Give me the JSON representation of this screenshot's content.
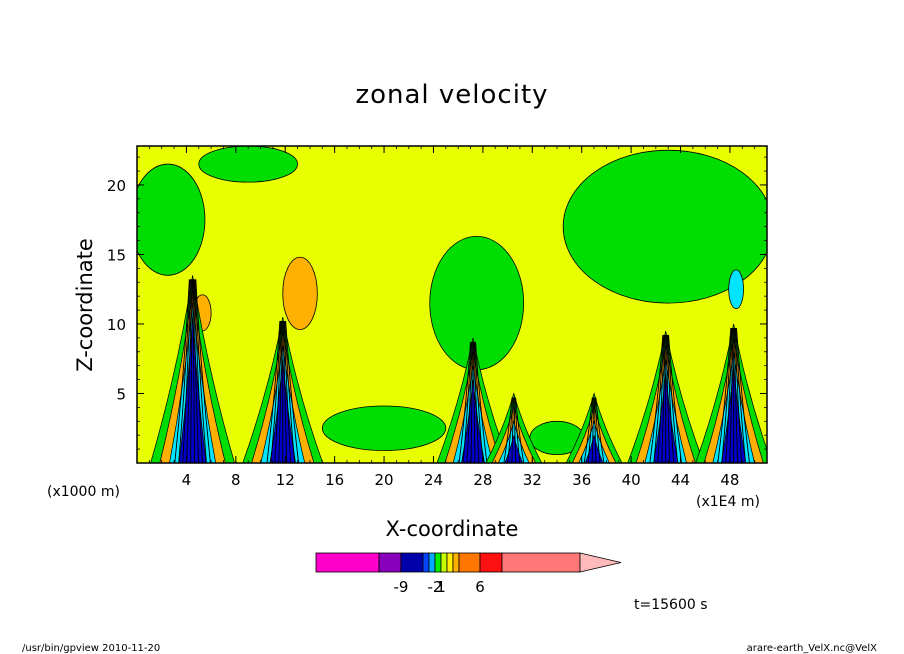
{
  "chart_data": {
    "type": "heatmap",
    "title": "zonal velocity",
    "xlabel": "X-coordinate",
    "ylabel": "Z-coordinate",
    "x_unit_left": "(x1000 m)",
    "x_unit_right": "(x1E4 m)",
    "xlim": [
      0,
      51
    ],
    "ylim": [
      0,
      22.8
    ],
    "x_ticks": [
      4,
      8,
      12,
      16,
      20,
      24,
      28,
      32,
      36,
      40,
      44,
      48
    ],
    "y_ticks": [
      5,
      10,
      15,
      20
    ],
    "background_color": "#e8ff00",
    "features": [
      {
        "x": 4.5,
        "strength": 1.0,
        "top": 13.5
      },
      {
        "x": 11.8,
        "strength": 0.9,
        "top": 10.5
      },
      {
        "x": 27.2,
        "strength": 0.7,
        "top": 9.0
      },
      {
        "x": 30.5,
        "strength": 0.3,
        "top": 5.0
      },
      {
        "x": 37.0,
        "strength": 0.3,
        "top": 5.0
      },
      {
        "x": 42.8,
        "strength": 0.8,
        "top": 9.5
      },
      {
        "x": 48.3,
        "strength": 0.8,
        "top": 10.0
      }
    ],
    "regions": [
      {
        "color": "#00dd00",
        "cx": 27.5,
        "cy": 11.5,
        "rx": 3.8,
        "ry": 4.8
      },
      {
        "color": "#00dd00",
        "cx": 43.0,
        "cy": 17.0,
        "rx": 8.5,
        "ry": 5.5
      },
      {
        "color": "#00dd00",
        "cx": 2.5,
        "cy": 17.5,
        "rx": 3.0,
        "ry": 4.0
      },
      {
        "color": "#00dd00",
        "cx": 20.0,
        "cy": 2.5,
        "rx": 5.0,
        "ry": 1.6
      },
      {
        "color": "#00dd00",
        "cx": 34.0,
        "cy": 1.8,
        "rx": 2.2,
        "ry": 1.2
      },
      {
        "color": "#00dd00",
        "cx": 9.0,
        "cy": 21.5,
        "rx": 4.0,
        "ry": 1.3
      },
      {
        "color": "#ffb000",
        "cx": 13.2,
        "cy": 12.2,
        "rx": 1.4,
        "ry": 2.6
      },
      {
        "color": "#ffb000",
        "cx": 5.3,
        "cy": 10.8,
        "rx": 0.7,
        "ry": 1.3
      },
      {
        "color": "#00e4ff",
        "cx": 48.5,
        "cy": 12.5,
        "rx": 0.6,
        "ry": 1.4
      }
    ],
    "colorbar": {
      "tick_labels": [
        "-9",
        "-2",
        "1",
        "6"
      ],
      "colors": [
        "#ff00cc",
        "#8800bb",
        "#0000aa",
        "#0044ff",
        "#00aaff",
        "#00ee00",
        "#c8ff00",
        "#ffee00",
        "#ffb000",
        "#ff7700",
        "#ff1111",
        "#ff7777",
        "#ffbbbb"
      ]
    },
    "time_label": "t=15600 s"
  },
  "footer": {
    "left": "/usr/bin/gpview   2010-11-20",
    "right": "arare-earth_VelX.nc@VelX"
  }
}
